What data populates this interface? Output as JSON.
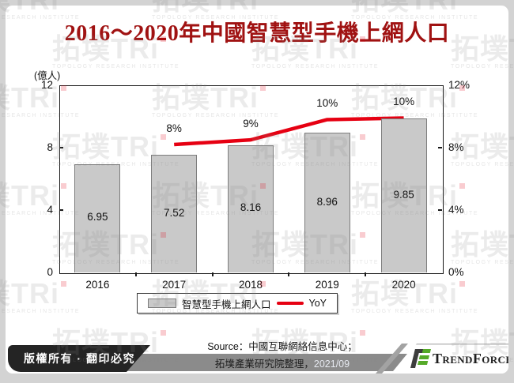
{
  "title": {
    "text": "2016～2020年中國智慧型手機上網人口",
    "color": "#a01212"
  },
  "watermark": {
    "big": "拓墣TRi",
    "sub": "TOPOLOGY RESEARCH INSTITUTE"
  },
  "chart_data": {
    "type": "combo",
    "title": "2016～2020年中國智慧型手機上網人口",
    "categories": [
      "2016",
      "2017",
      "2018",
      "2019",
      "2020"
    ],
    "series": [
      {
        "name": "智慧型手機上網人口",
        "type": "bar",
        "axis": "left",
        "values": [
          6.95,
          7.52,
          8.16,
          8.96,
          9.85
        ],
        "data_labels": [
          "6.95",
          "7.52",
          "8.16",
          "8.96",
          "9.85"
        ],
        "fill": "#c9c9c9",
        "border": "#7d7d7d"
      },
      {
        "name": "YoY",
        "type": "line",
        "axis": "right",
        "values": [
          null,
          8.2,
          8.5,
          9.8,
          9.9
        ],
        "data_labels": [
          "",
          "8%",
          "9%",
          "10%",
          "10%"
        ],
        "color": "#e60012"
      }
    ],
    "left_axis": {
      "title": "(億人)",
      "min": 0,
      "max": 12,
      "ticks": [
        0,
        4,
        8,
        12
      ],
      "tick_labels": [
        "0",
        "4",
        "8",
        "12"
      ]
    },
    "right_axis": {
      "min": 0,
      "max": 12,
      "ticks": [
        0,
        4,
        8,
        12
      ],
      "tick_labels": [
        "0%",
        "4%",
        "8%",
        "12%"
      ]
    },
    "legend": {
      "position": "bottom",
      "items": [
        {
          "label": "智慧型手機上網人口",
          "swatch": "bar"
        },
        {
          "label": "YoY",
          "swatch": "line"
        }
      ]
    },
    "grid": false
  },
  "source": {
    "line1": "Source：中國互聯網絡信息中心；",
    "line2_text": "拓墣產業研究院整理，",
    "line2_date": "2021/09"
  },
  "footer": {
    "copyright": "版權所有 · 翻印必究",
    "brand": {
      "p1": "T",
      "p2": "REND",
      "p3": "F",
      "p4": "ORCE"
    },
    "brand_green": "#55aa28",
    "bar_gray": "#8b8b8b"
  }
}
